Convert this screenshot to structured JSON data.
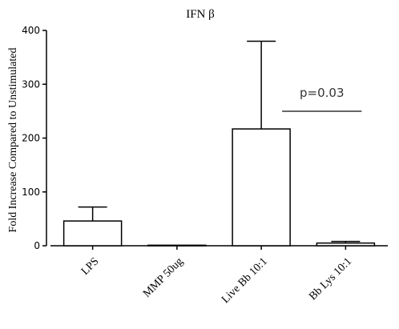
{
  "chart_data": {
    "type": "bar",
    "title": "IFN β",
    "ylabel": "Fold Increase Compared to  Unstimulated",
    "xlabel": "",
    "categories": [
      "LPS",
      "MMP 50ug",
      "Live Bb 10:1",
      "Bb Lys 10:1"
    ],
    "values": [
      46,
      1,
      217,
      5
    ],
    "error_upper": [
      72,
      1,
      380,
      8
    ],
    "ylim": [
      0,
      400
    ],
    "yticks": [
      0,
      100,
      200,
      300,
      400
    ],
    "ytick_labels": [
      "0",
      "100",
      "200",
      "300",
      "400"
    ],
    "annotations": [
      {
        "text": "p=0.03",
        "between": [
          "Live Bb 10:1",
          "Bb Lys 10:1"
        ]
      }
    ],
    "grid": false,
    "bar_fill": "#ffffff",
    "line_color": "#000000",
    "annotation_color": "#333333"
  }
}
